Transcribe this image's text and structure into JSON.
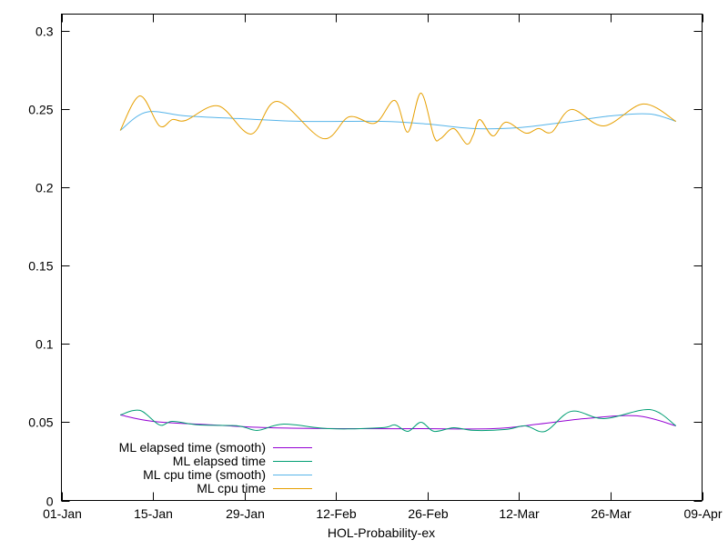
{
  "chart_data": {
    "type": "line",
    "title": "",
    "xlabel": "HOL-Probability-ex",
    "ylabel": "",
    "ylim": [
      0,
      0.311
    ],
    "xlim": [
      "01-Jan",
      "09-Apr"
    ],
    "yticks": [
      "0",
      "0.05",
      "0.1",
      "0.15",
      "0.2",
      "0.25",
      "0.3"
    ],
    "ytick_values": [
      0,
      0.05,
      0.1,
      0.15,
      0.2,
      0.25,
      0.3
    ],
    "xticks": [
      "01-Jan",
      "15-Jan",
      "29-Jan",
      "12-Feb",
      "26-Feb",
      "12-Mar",
      "26-Mar",
      "09-Apr"
    ],
    "grid": false,
    "legend_placement": "bottom-left",
    "series": [
      {
        "name": "ML elapsed time (smooth)",
        "color": "#9400d3",
        "x": [
          "10-Jan",
          "15-Jan",
          "24-Jan",
          "02-Feb",
          "14-Feb",
          "25-Feb",
          "08-Mar",
          "15-Mar",
          "22-Mar",
          "30-Mar",
          "05-Apr"
        ],
        "values": [
          0.0547,
          0.0506,
          0.0483,
          0.0465,
          0.0459,
          0.0459,
          0.0459,
          0.0488,
          0.0523,
          0.0541,
          0.0477
        ]
      },
      {
        "name": "ML elapsed time",
        "color": "#009e73",
        "x": [
          "10-Jan",
          "13-Jan",
          "16-Jan",
          "18-Jan",
          "22-Jan",
          "28-Jan",
          "31-Jan",
          "04-Feb",
          "11-Feb",
          "19-Feb",
          "21-Feb",
          "23-Feb",
          "25-Feb",
          "27-Feb",
          "02-Mar",
          "05-Mar",
          "10-Mar",
          "13-Mar",
          "16-Mar",
          "20-Mar",
          "25-Mar",
          "01-Apr",
          "05-Apr"
        ],
        "values": [
          0.0547,
          0.0576,
          0.0483,
          0.0506,
          0.0483,
          0.0477,
          0.0448,
          0.0488,
          0.0459,
          0.0465,
          0.0483,
          0.0442,
          0.05,
          0.0442,
          0.0465,
          0.0448,
          0.0454,
          0.0477,
          0.0442,
          0.057,
          0.0523,
          0.0581,
          0.0477
        ]
      },
      {
        "name": "ML cpu time (smooth)",
        "color": "#56b4e9",
        "x": [
          "10-Jan",
          "14-Jan",
          "20-Jan",
          "28-Jan",
          "07-Feb",
          "19-Feb",
          "26-Feb",
          "05-Mar",
          "12-Mar",
          "19-Mar",
          "26-Mar",
          "01-Apr",
          "05-Apr"
        ],
        "values": [
          0.2366,
          0.2483,
          0.2459,
          0.2442,
          0.2424,
          0.2424,
          0.2407,
          0.2378,
          0.2384,
          0.2419,
          0.2459,
          0.2471,
          0.2424
        ]
      },
      {
        "name": "ML cpu time",
        "color": "#e69f00",
        "x": [
          "10-Jan",
          "13-Jan",
          "16-Jan",
          "18-Jan",
          "20-Jan",
          "25-Jan",
          "30-Jan",
          "03-Feb",
          "10-Feb",
          "14-Feb",
          "18-Feb",
          "21-Feb",
          "23-Feb",
          "25-Feb",
          "27-Feb",
          "28-Feb",
          "02-Mar",
          "04-Mar",
          "05-Mar",
          "06-Mar",
          "08-Mar",
          "10-Mar",
          "13-Mar",
          "15-Mar",
          "17-Mar",
          "20-Mar",
          "25-Mar",
          "31-Mar",
          "05-Apr"
        ],
        "values": [
          0.2366,
          0.2587,
          0.2395,
          0.2436,
          0.243,
          0.2523,
          0.2343,
          0.2552,
          0.2314,
          0.2453,
          0.2413,
          0.2558,
          0.2355,
          0.2605,
          0.2326,
          0.2314,
          0.2378,
          0.2279,
          0.2337,
          0.2436,
          0.2331,
          0.2419,
          0.2349,
          0.2378,
          0.2355,
          0.25,
          0.2395,
          0.2535,
          0.2424
        ]
      }
    ]
  }
}
